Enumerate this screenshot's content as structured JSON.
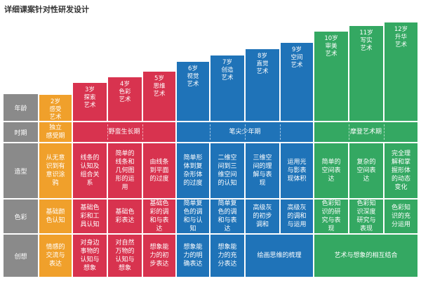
{
  "title": "详细课案针对性研发设计",
  "row_labels": [
    "年龄",
    "时期",
    "造型",
    "色彩",
    "创想"
  ],
  "ages": [
    {
      "text": "2岁\n感受\n艺术",
      "color": "#f0a02b"
    },
    {
      "text": "3岁\n探索\n艺术",
      "color": "#d8334f"
    },
    {
      "text": "4岁\n色彩\n艺术",
      "color": "#d8334f"
    },
    {
      "text": "5岁\n思维\n艺术",
      "color": "#d8334f"
    },
    {
      "text": "6岁\n视觉\n艺术",
      "color": "#1f73b8"
    },
    {
      "text": "7岁\n创造\n艺术",
      "color": "#1f73b8"
    },
    {
      "text": "8岁\n直觉\n艺术",
      "color": "#1f73b8"
    },
    {
      "text": "9岁\n空间\n艺术",
      "color": "#1f73b8"
    },
    {
      "text": "10岁\n审美\n艺术",
      "color": "#34a862"
    },
    {
      "text": "11岁\n写实\n艺术",
      "color": "#34a862"
    },
    {
      "text": "12岁\n升华\n艺术",
      "color": "#34a862"
    }
  ],
  "periods": [
    "独立\n感受期",
    "野蛮生长期",
    "笔尖少年期",
    "摩登艺术期"
  ],
  "zaoxing": [
    "从无意\n识到有\n意识涂\n鸦",
    "线条的\n认知及\n组合关\n系",
    "简单的\n线条和\n几何图\n形的运\n用",
    "由线条\n到平面\n的过度",
    "简单形\n体到复\n杂形体\n的过度",
    "二维空\n间到三\n维空间\n的认知",
    "三维空\n间的理\n解与表\n现",
    "运用光\n与影表\n现体积",
    "简单的\n空间表\n达",
    "复杂的\n空间表\n达",
    "完全理\n解和掌\n握形体\n的动态\n变化"
  ],
  "secai": [
    "基础颜\n色认知",
    "基础色\n彩和工\n具认知",
    "基础色\n彩表达",
    "基础色\n彩的调\n和与表\n达",
    "简单复\n色的调\n和与认\n知",
    "简单复\n色的调\n和与表\n达",
    "高级灰\n的初步\n调和",
    "高级灰\n的调和\n与运用",
    "色彩知\n识的研\n究与表\n现",
    "色彩知\n识深度\n研究与\n表现",
    "色彩知\n识的充\n分运用"
  ],
  "chuangxiang": [
    "情感的\n交流与\n表达",
    "对身边\n事物的\n认知与\n想象",
    "对自然\n万物的\n认知与\n想象",
    "想象能\n力的初\n步表达",
    "想象能\n力的明\n确表达",
    "想象能\n力的充\n分表达",
    "绘画思维的梳理",
    "艺术与想象的相互结合"
  ]
}
